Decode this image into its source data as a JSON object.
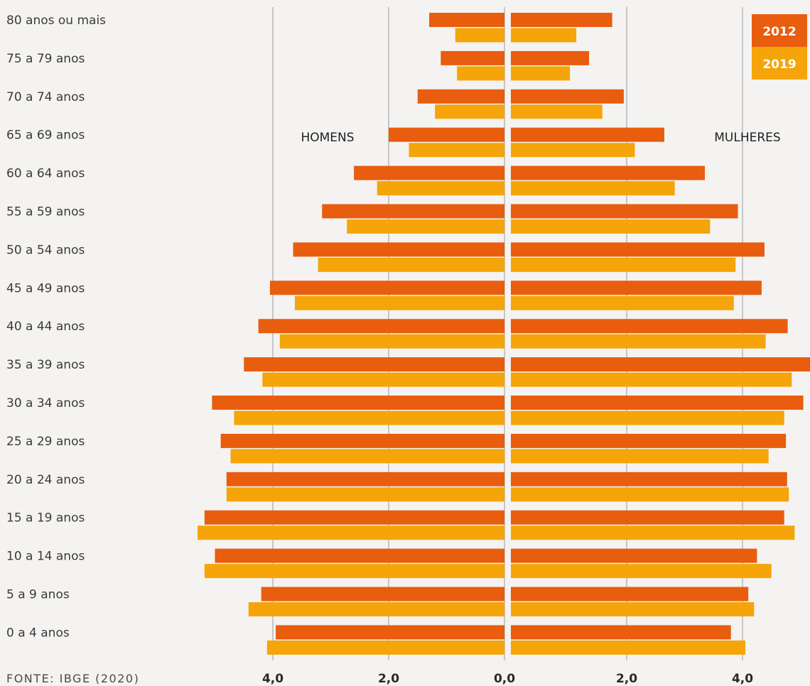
{
  "chart_data": {
    "type": "bar",
    "orientation": "horizontal-population-pyramid",
    "categories": [
      "80 anos ou mais",
      "75 a 79 anos",
      "70 a 74 anos",
      "65 a 69 anos",
      "60 a 64 anos",
      "55 a 59 anos",
      "50 a 54 anos",
      "45 a 49 anos",
      "40 a 44 anos",
      "35 a 39 anos",
      "30 a 34 anos",
      "25 a 29 anos",
      "20 a 24 anos",
      "15 a 19 anos",
      "10 a 14 anos",
      "5 a 9 anos",
      "0 a 4 anos"
    ],
    "side_labels": {
      "left": "HOMENS",
      "right": "MULHERES"
    },
    "x_ticks": [
      "4,0",
      "2,0",
      "0,0",
      "2,0",
      "4,0"
    ],
    "x_tick_values": [
      -4,
      -2,
      0,
      2,
      4
    ],
    "xlim": [
      -5.2,
      5.2
    ],
    "grid": true,
    "legend_position": "top-right",
    "source": "FONTE: IBGE (2020)",
    "series": [
      {
        "name": "2012",
        "color": "#e85d0e",
        "men": [
          1.3,
          1.1,
          1.5,
          2.0,
          2.6,
          3.15,
          3.65,
          4.05,
          4.25,
          4.5,
          5.05,
          4.9,
          4.8,
          5.18,
          5.0,
          4.2,
          3.95
        ],
        "women": [
          1.75,
          1.35,
          1.95,
          2.65,
          3.35,
          3.92,
          4.38,
          4.33,
          4.78,
          5.3,
          5.05,
          4.75,
          4.77,
          4.72,
          4.25,
          4.1,
          3.8
        ]
      },
      {
        "name": "2019",
        "color": "#f5a509",
        "men": [
          0.85,
          0.82,
          1.2,
          1.65,
          2.2,
          2.72,
          3.22,
          3.62,
          3.88,
          4.18,
          4.67,
          4.73,
          4.8,
          5.3,
          5.18,
          4.42,
          4.1
        ],
        "women": [
          1.13,
          1.02,
          1.58,
          2.14,
          2.83,
          3.44,
          3.88,
          3.85,
          4.4,
          4.85,
          4.72,
          4.45,
          4.8,
          4.9,
          4.5,
          4.2,
          4.05
        ]
      }
    ]
  }
}
